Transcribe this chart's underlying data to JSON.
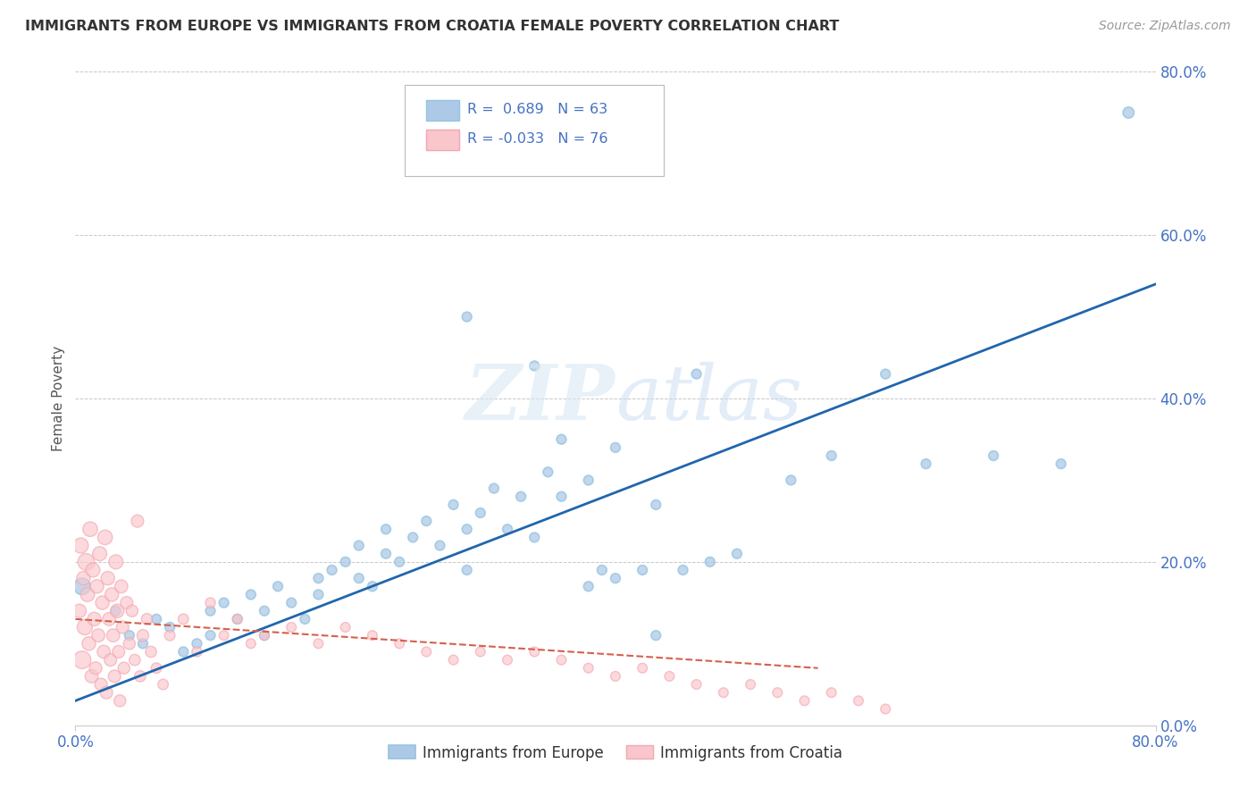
{
  "title": "IMMIGRANTS FROM EUROPE VS IMMIGRANTS FROM CROATIA FEMALE POVERTY CORRELATION CHART",
  "source": "Source: ZipAtlas.com",
  "ylabel": "Female Poverty",
  "ytick_labels": [
    "0.0%",
    "20.0%",
    "40.0%",
    "60.0%",
    "80.0%"
  ],
  "ytick_values": [
    0.0,
    0.2,
    0.4,
    0.6,
    0.8
  ],
  "xlim": [
    0,
    0.8
  ],
  "ylim": [
    0,
    0.8
  ],
  "legend1_r": "0.689",
  "legend1_n": "63",
  "legend2_r": "-0.033",
  "legend2_n": "76",
  "blue_color": "#92c5de",
  "pink_color": "#f4a6b0",
  "blue_fill": "#aec9e8",
  "pink_fill": "#f9c6cc",
  "blue_line_color": "#2166ac",
  "pink_line_color": "#d6604d",
  "grid_color": "#c8c8c8",
  "axis_label_color": "#4472c4",
  "blue_scatter_x": [
    0.005,
    0.03,
    0.04,
    0.05,
    0.06,
    0.07,
    0.08,
    0.09,
    0.1,
    0.1,
    0.11,
    0.12,
    0.13,
    0.14,
    0.14,
    0.15,
    0.16,
    0.17,
    0.18,
    0.18,
    0.19,
    0.2,
    0.21,
    0.21,
    0.22,
    0.23,
    0.23,
    0.24,
    0.25,
    0.26,
    0.27,
    0.28,
    0.29,
    0.29,
    0.3,
    0.31,
    0.32,
    0.33,
    0.34,
    0.35,
    0.36,
    0.38,
    0.39,
    0.4,
    0.4,
    0.42,
    0.43,
    0.45,
    0.46,
    0.47,
    0.49,
    0.29,
    0.34,
    0.36,
    0.53,
    0.56,
    0.6,
    0.63,
    0.68,
    0.73,
    0.78,
    0.38,
    0.43
  ],
  "blue_scatter_y": [
    0.17,
    0.14,
    0.11,
    0.1,
    0.13,
    0.12,
    0.09,
    0.1,
    0.14,
    0.11,
    0.15,
    0.13,
    0.16,
    0.14,
    0.11,
    0.17,
    0.15,
    0.13,
    0.18,
    0.16,
    0.19,
    0.2,
    0.18,
    0.22,
    0.17,
    0.21,
    0.24,
    0.2,
    0.23,
    0.25,
    0.22,
    0.27,
    0.24,
    0.19,
    0.26,
    0.29,
    0.24,
    0.28,
    0.23,
    0.31,
    0.28,
    0.3,
    0.19,
    0.18,
    0.34,
    0.19,
    0.27,
    0.19,
    0.43,
    0.2,
    0.21,
    0.5,
    0.44,
    0.35,
    0.3,
    0.33,
    0.43,
    0.32,
    0.33,
    0.32,
    0.75,
    0.17,
    0.11
  ],
  "blue_scatter_sizes": [
    180,
    60,
    60,
    60,
    60,
    60,
    60,
    60,
    60,
    60,
    60,
    60,
    60,
    60,
    60,
    60,
    60,
    60,
    60,
    60,
    60,
    60,
    60,
    60,
    60,
    60,
    60,
    60,
    60,
    60,
    60,
    60,
    60,
    60,
    60,
    60,
    60,
    60,
    60,
    60,
    60,
    60,
    60,
    60,
    60,
    60,
    60,
    60,
    60,
    60,
    60,
    60,
    60,
    60,
    60,
    60,
    60,
    60,
    60,
    60,
    80,
    60,
    60
  ],
  "pink_scatter_x": [
    0.003,
    0.004,
    0.005,
    0.006,
    0.007,
    0.008,
    0.009,
    0.01,
    0.011,
    0.012,
    0.013,
    0.014,
    0.015,
    0.016,
    0.017,
    0.018,
    0.019,
    0.02,
    0.021,
    0.022,
    0.023,
    0.024,
    0.025,
    0.026,
    0.027,
    0.028,
    0.029,
    0.03,
    0.031,
    0.032,
    0.033,
    0.034,
    0.035,
    0.036,
    0.038,
    0.04,
    0.042,
    0.044,
    0.046,
    0.048,
    0.05,
    0.053,
    0.056,
    0.06,
    0.065,
    0.07,
    0.08,
    0.09,
    0.1,
    0.11,
    0.12,
    0.13,
    0.14,
    0.16,
    0.18,
    0.2,
    0.22,
    0.24,
    0.26,
    0.28,
    0.3,
    0.32,
    0.34,
    0.36,
    0.38,
    0.4,
    0.42,
    0.44,
    0.46,
    0.48,
    0.5,
    0.52,
    0.54,
    0.56,
    0.58,
    0.6
  ],
  "pink_scatter_y": [
    0.14,
    0.22,
    0.08,
    0.18,
    0.12,
    0.2,
    0.16,
    0.1,
    0.24,
    0.06,
    0.19,
    0.13,
    0.07,
    0.17,
    0.11,
    0.21,
    0.05,
    0.15,
    0.09,
    0.23,
    0.04,
    0.18,
    0.13,
    0.08,
    0.16,
    0.11,
    0.06,
    0.2,
    0.14,
    0.09,
    0.03,
    0.17,
    0.12,
    0.07,
    0.15,
    0.1,
    0.14,
    0.08,
    0.25,
    0.06,
    0.11,
    0.13,
    0.09,
    0.07,
    0.05,
    0.11,
    0.13,
    0.09,
    0.15,
    0.11,
    0.13,
    0.1,
    0.11,
    0.12,
    0.1,
    0.12,
    0.11,
    0.1,
    0.09,
    0.08,
    0.09,
    0.08,
    0.09,
    0.08,
    0.07,
    0.06,
    0.07,
    0.06,
    0.05,
    0.04,
    0.05,
    0.04,
    0.03,
    0.04,
    0.03,
    0.02
  ],
  "pink_scatter_sizes": [
    120,
    150,
    200,
    120,
    150,
    180,
    130,
    120,
    140,
    110,
    130,
    120,
    100,
    120,
    110,
    130,
    100,
    120,
    110,
    140,
    100,
    120,
    110,
    100,
    120,
    110,
    100,
    130,
    120,
    100,
    90,
    110,
    100,
    90,
    100,
    90,
    90,
    80,
    100,
    80,
    90,
    80,
    80,
    70,
    70,
    70,
    70,
    65,
    65,
    60,
    60,
    60,
    60,
    60,
    60,
    60,
    60,
    60,
    60,
    60,
    60,
    60,
    60,
    60,
    60,
    60,
    60,
    60,
    60,
    60,
    60,
    60,
    60,
    60,
    60,
    60
  ],
  "blue_line_x": [
    0.0,
    0.8
  ],
  "blue_line_y": [
    0.03,
    0.54
  ],
  "pink_line_x": [
    0.0,
    0.55
  ],
  "pink_line_y": [
    0.13,
    0.07
  ]
}
